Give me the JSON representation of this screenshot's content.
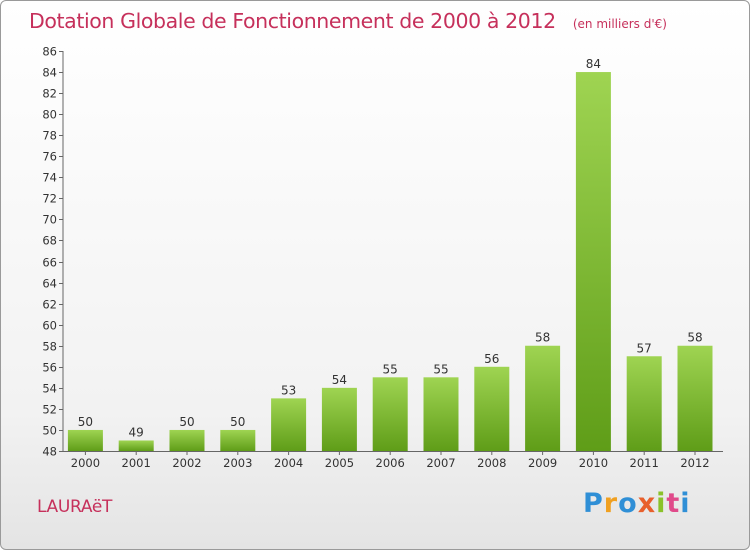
{
  "title": "Dotation Globale de Fonctionnement de 2000 à 2012",
  "unit": "(en milliers d'€)",
  "commune": "LAURAëT",
  "brand": {
    "name": "Proxiti",
    "letter_colors": [
      "#2f8fd6",
      "#f0a020",
      "#2f8fd6",
      "#e8602c",
      "#8ac22a",
      "#e04a8a",
      "#2f8fd6"
    ]
  },
  "chart_data": {
    "type": "bar",
    "title": "Dotation Globale de Fonctionnement de 2000 à 2012",
    "ylabel": "(en milliers d'€)",
    "xlabel": "",
    "categories": [
      "2000",
      "2001",
      "2002",
      "2003",
      "2004",
      "2005",
      "2006",
      "2007",
      "2008",
      "2009",
      "2010",
      "2011",
      "2012"
    ],
    "values": [
      50,
      49,
      50,
      50,
      53,
      54,
      55,
      55,
      56,
      58,
      84,
      57,
      58
    ],
    "ylim": [
      48,
      86
    ],
    "ytick_step": 2,
    "grid": false,
    "data_labels": true,
    "bar_color": "#7ab82e"
  }
}
